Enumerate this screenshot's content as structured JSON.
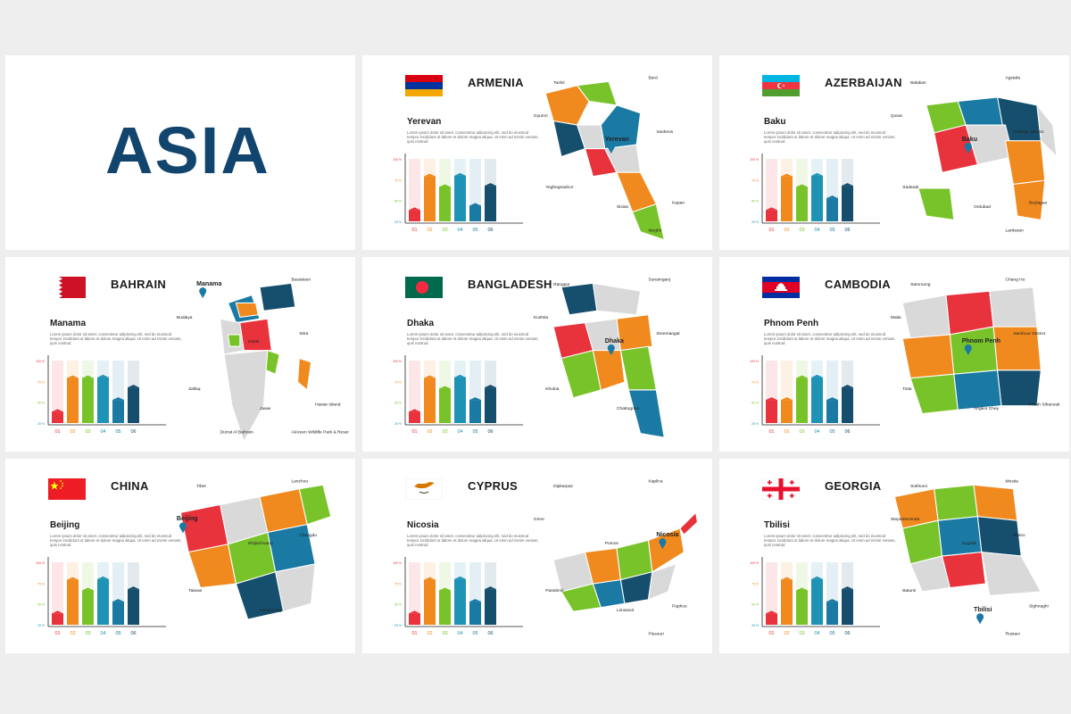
{
  "asia_title": "ASIA",
  "lorem_text": "Lorem ipsum dolor sit amet, consectetur adipiscing elit, sed do eiusmod tempor incididunt ut labore et dolore magna aliqua. Ut enim ad minim veniam, quis nostrud",
  "chart_ticks": [
    "100 %",
    "75 %",
    "50 %",
    "25 %"
  ],
  "chart_categories": [
    "01",
    "02",
    "03",
    "04",
    "05",
    "06"
  ],
  "bar_colors": [
    "#e8323c",
    "#f08a1e",
    "#79c32a",
    "#1f93b5",
    "#1a7aa4",
    "#164f6e"
  ],
  "countries": [
    {
      "name": "ARMENIA",
      "capital": "Yerevan",
      "flag": "armenia",
      "values": [
        18,
        72,
        55,
        73,
        25,
        57
      ],
      "map_labels": [
        "Tashir",
        "Berd",
        "Gyumri",
        "Yerevan",
        "Vardenis",
        "Yeghegnadzor",
        "Sisian",
        "Kapan",
        "Meghri"
      ]
    },
    {
      "name": "AZERBAIJAN",
      "capital": "Baku",
      "flag": "azerbaijan",
      "values": [
        18,
        72,
        55,
        73,
        37,
        57
      ],
      "map_labels": [
        "Balakan",
        "Agstafa",
        "Qusar",
        "Baku",
        "Kalbajar District",
        "Sadarak",
        "Ordubad",
        "Beylagan",
        "Lankaran"
      ]
    },
    {
      "name": "BAHRAIN",
      "capital": "Manama",
      "flag": "bahrain",
      "values": [
        18,
        72,
        72,
        73,
        37,
        57
      ],
      "map_labels": [
        "Manama",
        "Busaiteen",
        "Budaiya",
        "Galali",
        "Sitra",
        "Zallaq",
        "Jaww",
        "Hawar Island",
        "AlAreen Wildlife Park & Reserve",
        "Durrat Al Bahrain"
      ]
    },
    {
      "name": "BANGLADESH",
      "capital": "Dhaka",
      "flag": "bangladesh",
      "values": [
        18,
        72,
        55,
        73,
        37,
        57
      ],
      "map_labels": [
        "Rangpur",
        "Sunamganj",
        "Kushtia",
        "Dhaka",
        "Sreemangal",
        "Khulna",
        "Chattogram"
      ]
    },
    {
      "name": "CAMBODIA",
      "capital": "Phnom Penh",
      "flag": "cambodia",
      "values": [
        37,
        37,
        72,
        73,
        37,
        57
      ],
      "map_labels": [
        "Samroong",
        "Chang Ho",
        "Malai",
        "Phnom Penh",
        "Sambour District",
        "Totai",
        "Angkor Chey",
        "Preah Sihanouk"
      ]
    },
    {
      "name": "CHINA",
      "capital": "Beijing",
      "flag": "china",
      "values": [
        18,
        72,
        55,
        73,
        37,
        57
      ],
      "map_labels": [
        "Tibet",
        "Lanzhou",
        "Beijing",
        "Shijiazhuang",
        "Chengdu",
        "Taiwan",
        "Hong Kong"
      ]
    },
    {
      "name": "CYPRUS",
      "capital": "Nicosia",
      "flag": "cyprus",
      "values": [
        18,
        72,
        55,
        73,
        37,
        57
      ],
      "map_labels": [
        "Dipkarpaz",
        "Kaplica",
        "Girne",
        "Pomos",
        "Nicosia",
        "Paralimni",
        "Limassol",
        "Paphos",
        "Pissouri"
      ]
    },
    {
      "name": "GEORGIA",
      "capital": "Tbilisi",
      "flag": "georgia",
      "values": [
        18,
        72,
        55,
        73,
        37,
        57
      ],
      "map_labels": [
        "Sokhumi",
        "Mestia",
        "Stepantsminda",
        "Zugdidi",
        "Mutso",
        "Batumi",
        "Tbilisi",
        "Sighnaghi",
        "Rustavi"
      ]
    }
  ]
}
